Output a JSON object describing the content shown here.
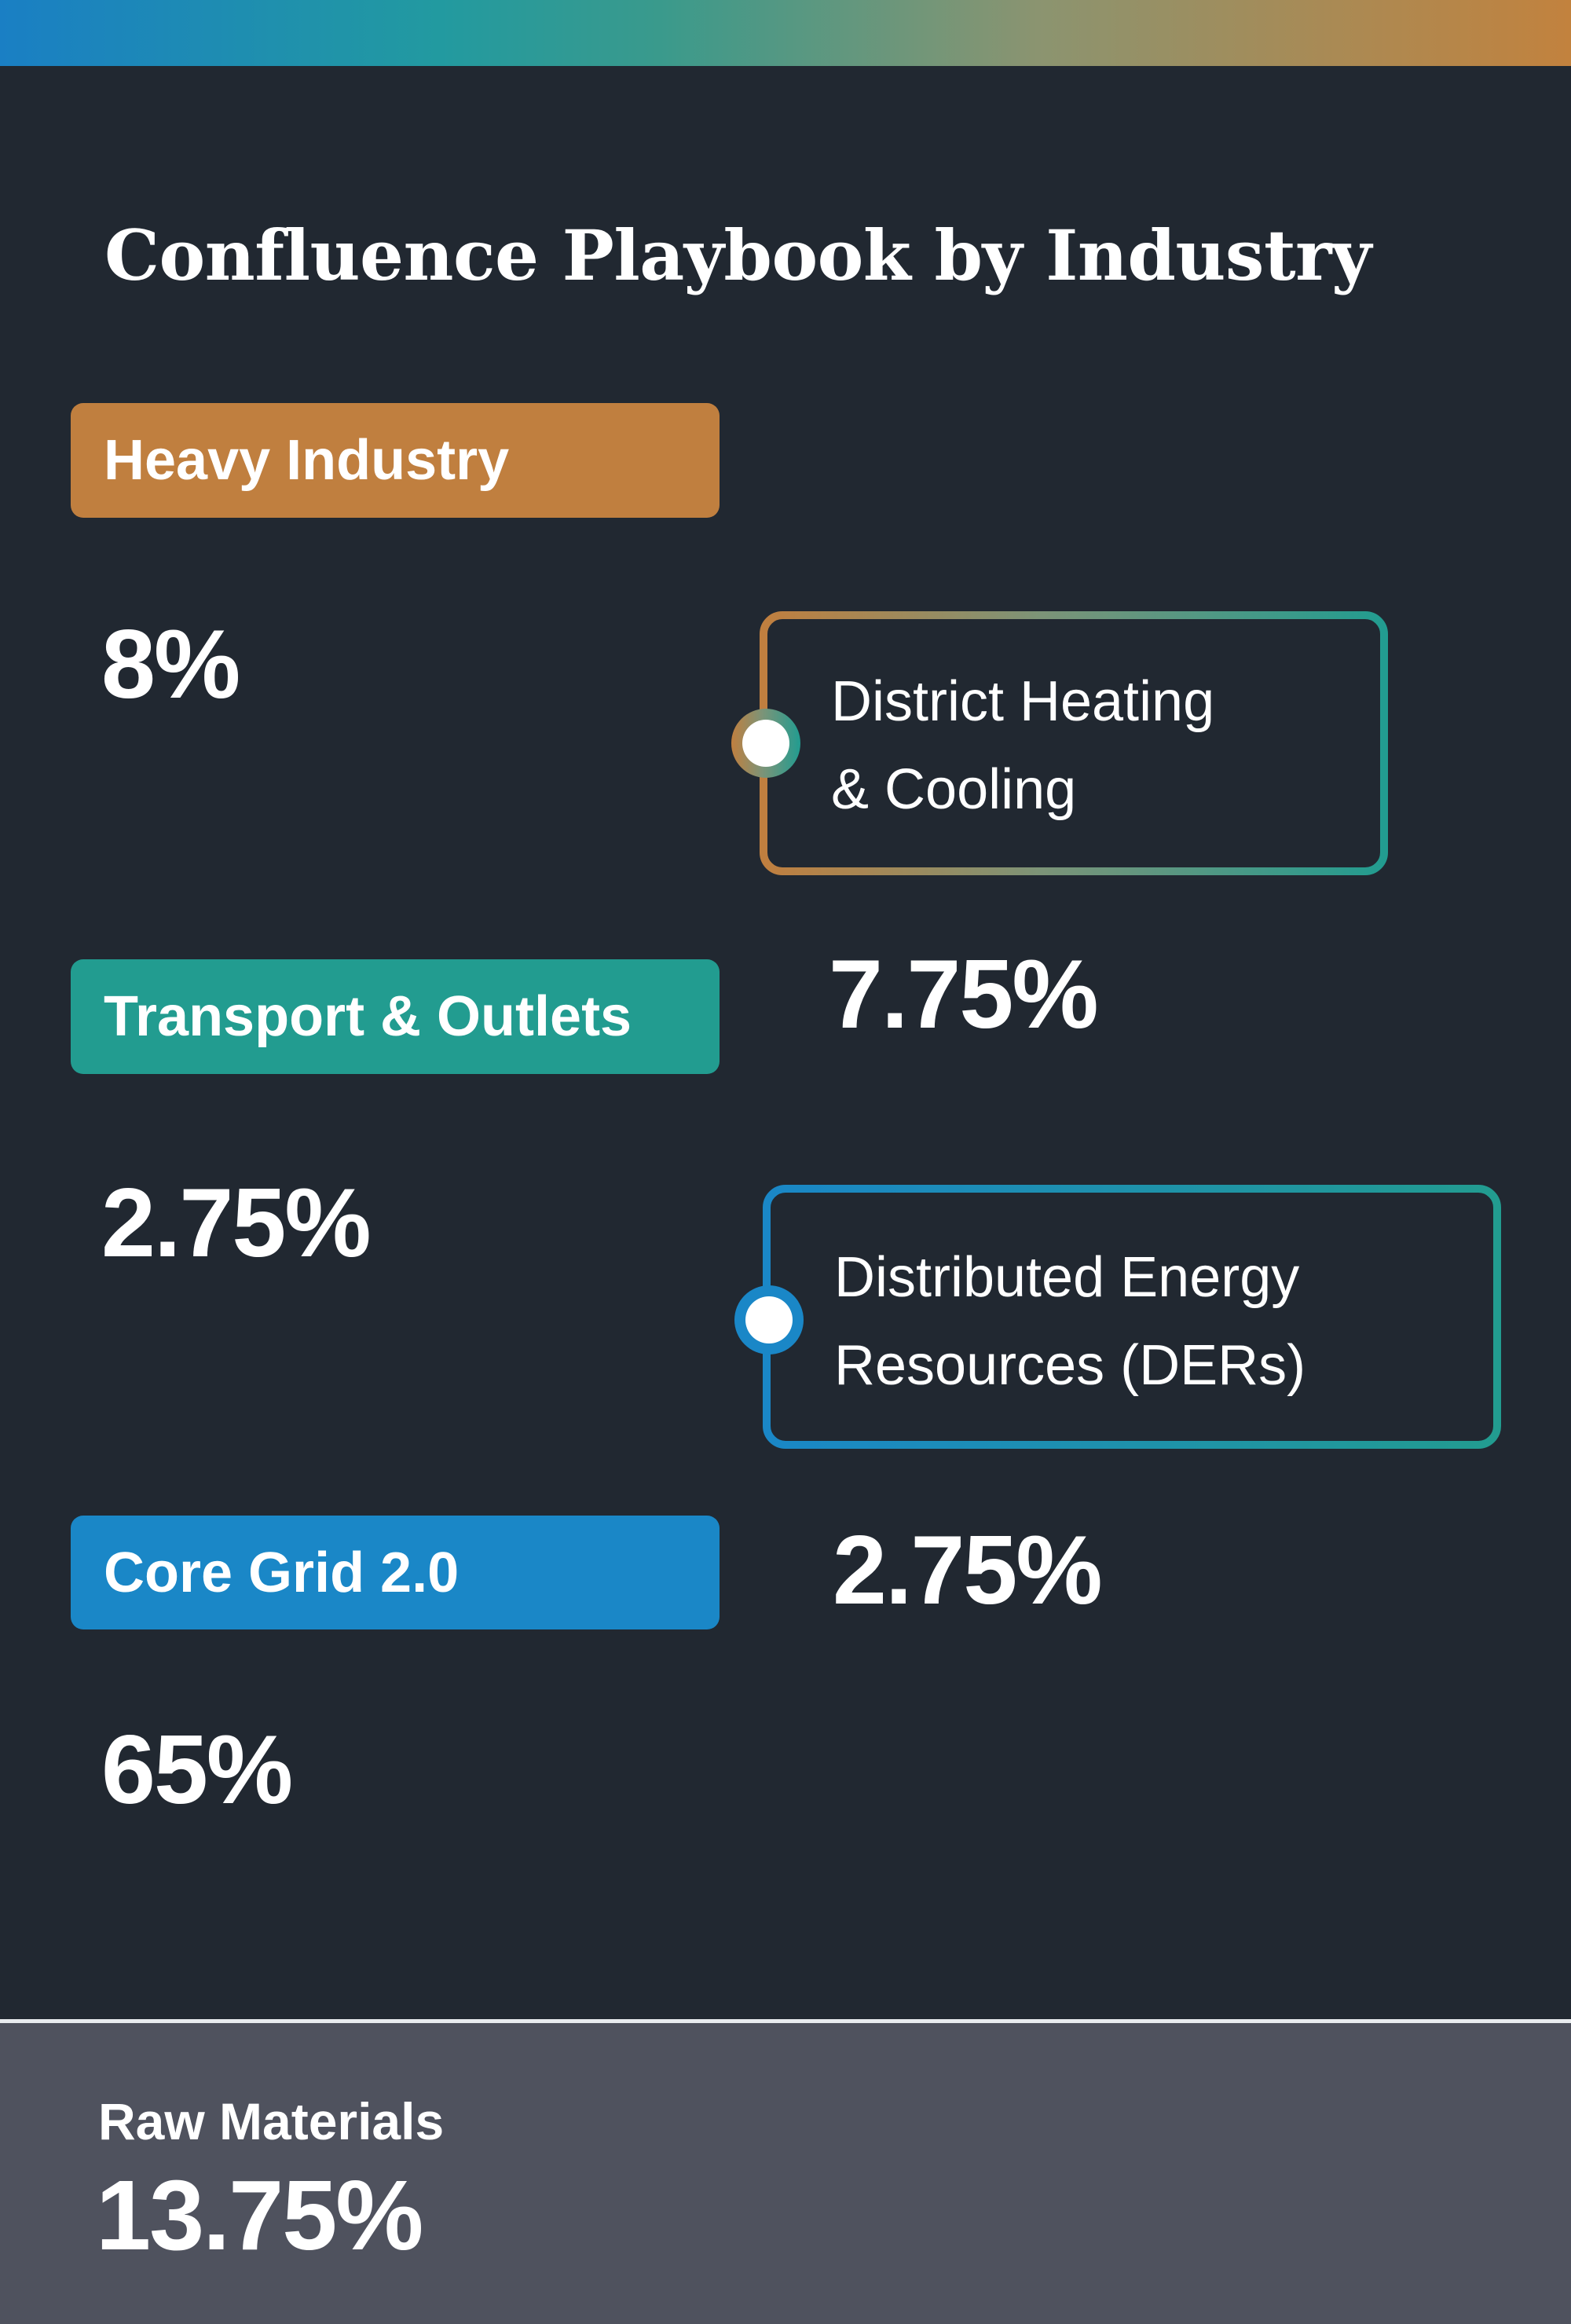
{
  "title": "Confluence Playbook by Industry",
  "colors": {
    "background": "#212831",
    "heavy_industry": "#c07f3f",
    "transport": "#229c90",
    "core_grid": "#1a87c7",
    "footer": "#4f525e"
  },
  "left_column": [
    {
      "label": "Heavy Industry",
      "value": "8%"
    },
    {
      "label": "Transport & Outlets",
      "value": "2.75%"
    },
    {
      "label": "Core Grid 2.0",
      "value": "65%"
    }
  ],
  "right_column": [
    {
      "label_line1": "District Heating",
      "label_line2": "& Cooling",
      "value": "7.75%"
    },
    {
      "label_line1": "Distributed Energy",
      "label_line2": "Resources (DERs)",
      "value": "2.75%"
    }
  ],
  "footer": {
    "label": "Raw Materials",
    "value": "13.75%"
  }
}
